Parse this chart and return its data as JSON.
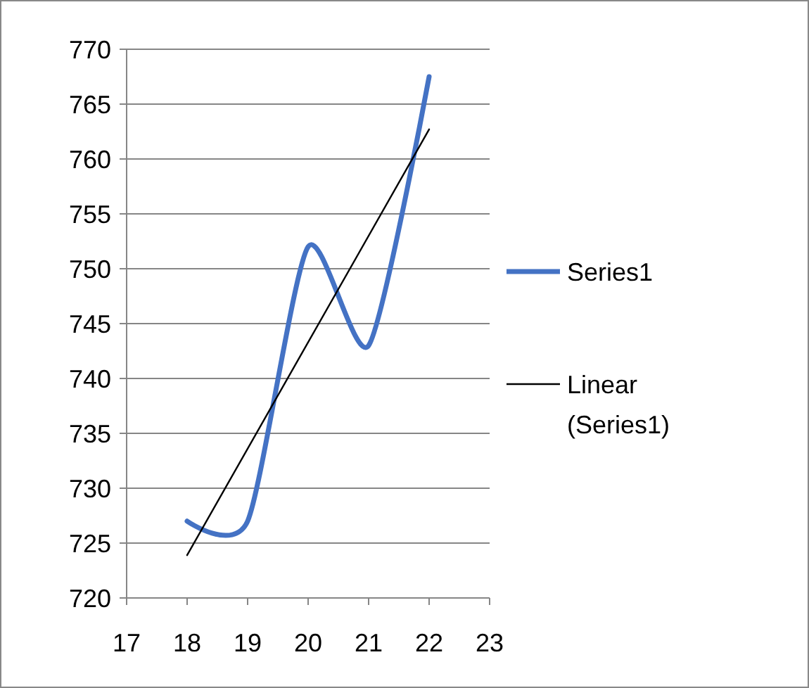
{
  "chart_data": {
    "type": "line",
    "x": [
      18,
      19,
      20,
      21,
      22
    ],
    "xlim": [
      17,
      23
    ],
    "xticks": [
      17,
      18,
      19,
      20,
      21,
      22,
      23
    ],
    "ylim": [
      720,
      770
    ],
    "yticks": [
      720,
      725,
      730,
      735,
      740,
      745,
      750,
      755,
      760,
      765,
      770
    ],
    "grid": "y",
    "legend": "right",
    "marker": "none",
    "series": [
      {
        "name": "Series1",
        "color": "#4472c4",
        "values": [
          727,
          727,
          752,
          743,
          767.5
        ]
      },
      {
        "name": "Linear (Series1)",
        "type": "line",
        "color": "#000000",
        "x": [
          18,
          22
        ],
        "values": [
          723.9,
          762.7
        ]
      }
    ]
  }
}
